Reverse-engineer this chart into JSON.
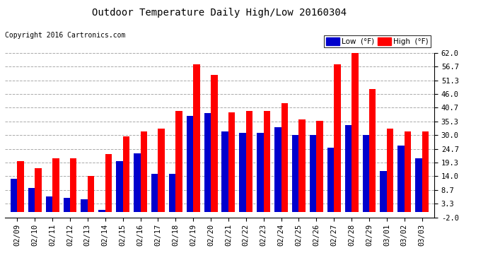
{
  "title": "Outdoor Temperature Daily High/Low 20160304",
  "copyright": "Copyright 2016 Cartronics.com",
  "yticks": [
    -2.0,
    3.3,
    8.7,
    14.0,
    19.3,
    24.7,
    30.0,
    35.3,
    40.7,
    46.0,
    51.3,
    56.7,
    62.0
  ],
  "dates": [
    "02/09",
    "02/10",
    "02/11",
    "02/12",
    "02/13",
    "02/14",
    "02/15",
    "02/16",
    "02/17",
    "02/18",
    "02/19",
    "02/20",
    "02/21",
    "02/22",
    "02/23",
    "02/24",
    "02/25",
    "02/26",
    "02/27",
    "02/28",
    "02/29",
    "03/01",
    "03/02",
    "03/03"
  ],
  "low": [
    13.0,
    9.5,
    6.0,
    5.5,
    5.0,
    1.0,
    20.0,
    23.0,
    15.0,
    15.0,
    37.5,
    38.5,
    31.5,
    31.0,
    31.0,
    33.0,
    30.0,
    30.0,
    25.0,
    34.0,
    30.0,
    16.0,
    26.0,
    21.0
  ],
  "high": [
    20.0,
    17.0,
    21.0,
    21.0,
    14.0,
    22.5,
    29.5,
    31.5,
    32.5,
    39.5,
    57.5,
    53.5,
    39.0,
    39.5,
    39.5,
    42.5,
    36.0,
    35.5,
    57.5,
    62.0,
    48.0,
    32.5,
    31.5,
    31.5
  ],
  "low_color": "#0000cc",
  "high_color": "#ff0000",
  "bg_color": "#ffffff",
  "grid_color": "#aaaaaa",
  "bar_width": 0.38,
  "ylim_min": -2.0,
  "ylim_max": 62.0,
  "legend_low_label": "Low  (°F)",
  "legend_high_label": "High  (°F)"
}
